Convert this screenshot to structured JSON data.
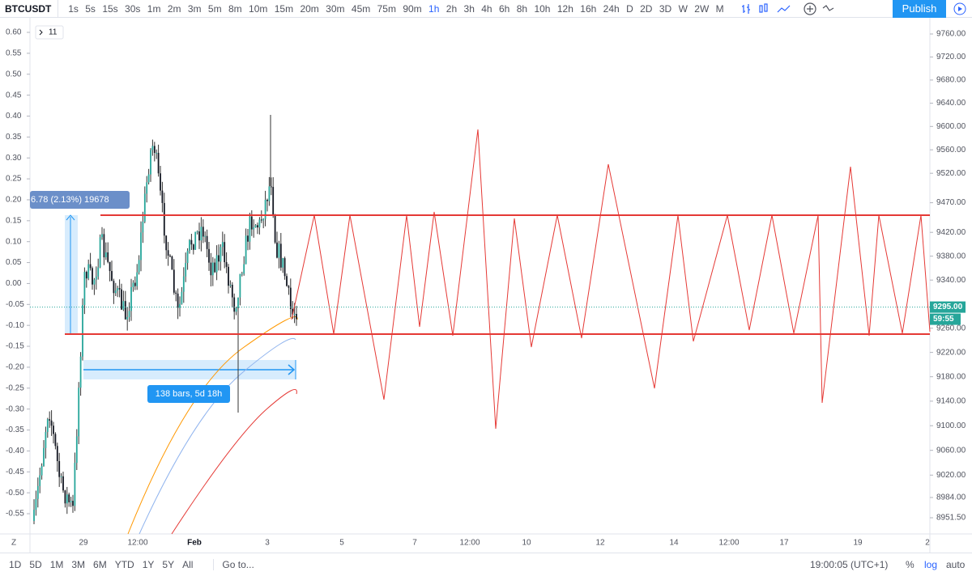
{
  "toolbar": {
    "symbol": "BTCUSDT",
    "intervals": [
      "1s",
      "5s",
      "15s",
      "30s",
      "1m",
      "2m",
      "3m",
      "5m",
      "8m",
      "10m",
      "15m",
      "20m",
      "30m",
      "45m",
      "75m",
      "90m",
      "1h",
      "2h",
      "3h",
      "4h",
      "6h",
      "8h",
      "10h",
      "12h",
      "16h",
      "24h",
      "D",
      "2D",
      "3D",
      "W",
      "2W",
      "M"
    ],
    "active_interval": "1h",
    "publish": "Publish"
  },
  "legend": {
    "collapsed_count": "11"
  },
  "corner": "Z",
  "price_axis": {
    "ticks": [
      {
        "value": 9760,
        "label": "9760.00"
      },
      {
        "value": 9720,
        "label": "9720.00"
      },
      {
        "value": 9680,
        "label": "9680.00"
      },
      {
        "value": 9640,
        "label": "9640.00"
      },
      {
        "value": 9600,
        "label": "9600.00"
      },
      {
        "value": 9560,
        "label": "9560.00"
      },
      {
        "value": 9520,
        "label": "9520.00"
      },
      {
        "value": 9470,
        "label": "9470.00"
      },
      {
        "value": 9420,
        "label": "9420.00"
      },
      {
        "value": 9380,
        "label": "9380.00"
      },
      {
        "value": 9340,
        "label": "9340.00"
      },
      {
        "value": 9260,
        "label": "9260.00"
      },
      {
        "value": 9220,
        "label": "9220.00"
      },
      {
        "value": 9180,
        "label": "9180.00"
      },
      {
        "value": 9140,
        "label": "9140.00"
      },
      {
        "value": 9100,
        "label": "9100.00"
      },
      {
        "value": 9060,
        "label": "9060.00"
      },
      {
        "value": 9020,
        "label": "9020.00"
      },
      {
        "value": 8984,
        "label": "8984.00"
      },
      {
        "value": 8951.5,
        "label": "8951.50"
      }
    ],
    "last_price": {
      "value": 9295,
      "label": "9295.00"
    },
    "countdown": "59:55"
  },
  "percent_axis": {
    "ticks": [
      {
        "value": 0.6,
        "label": "0.60"
      },
      {
        "value": 0.55,
        "label": "0.55"
      },
      {
        "value": 0.5,
        "label": "0.50"
      },
      {
        "value": 0.45,
        "label": "0.45"
      },
      {
        "value": 0.4,
        "label": "0.40"
      },
      {
        "value": 0.35,
        "label": "0.35"
      },
      {
        "value": 0.3,
        "label": "0.30"
      },
      {
        "value": 0.25,
        "label": "0.25"
      },
      {
        "value": 0.2,
        "label": "0.20"
      },
      {
        "value": 0.15,
        "label": "0.15"
      },
      {
        "value": 0.1,
        "label": "0.10"
      },
      {
        "value": 0.05,
        "label": "0.05"
      },
      {
        "value": 0,
        "label": "0.00"
      },
      {
        "value": -0.05,
        "label": "-0.05"
      },
      {
        "value": -0.1,
        "label": "-0.10"
      },
      {
        "value": -0.15,
        "label": "-0.15"
      },
      {
        "value": -0.2,
        "label": "-0.20"
      },
      {
        "value": -0.25,
        "label": "-0.25"
      },
      {
        "value": -0.3,
        "label": "-0.30"
      },
      {
        "value": -0.35,
        "label": "-0.35"
      },
      {
        "value": -0.4,
        "label": "-0.40"
      },
      {
        "value": -0.45,
        "label": "-0.45"
      },
      {
        "value": -0.5,
        "label": "-0.50"
      },
      {
        "value": -0.55,
        "label": "-0.55"
      }
    ]
  },
  "time_axis": {
    "labels": [
      "29",
      "12:00",
      "Feb",
      "3",
      "5",
      "7",
      "12:00",
      "10",
      "12",
      "14",
      "12:00",
      "17",
      "19",
      "2"
    ]
  },
  "measure": {
    "price_range": "6.78 (2.13%) 19678",
    "date_range": "138 bars, 5d 18h"
  },
  "bottom_bar": {
    "ranges": [
      "1D",
      "5D",
      "1M",
      "3M",
      "6M",
      "YTD",
      "1Y",
      "5Y",
      "All"
    ],
    "goto": "Go to...",
    "clock": "19:00:05 (UTC+1)",
    "percent": "%",
    "log": "log",
    "auto": "auto"
  }
}
